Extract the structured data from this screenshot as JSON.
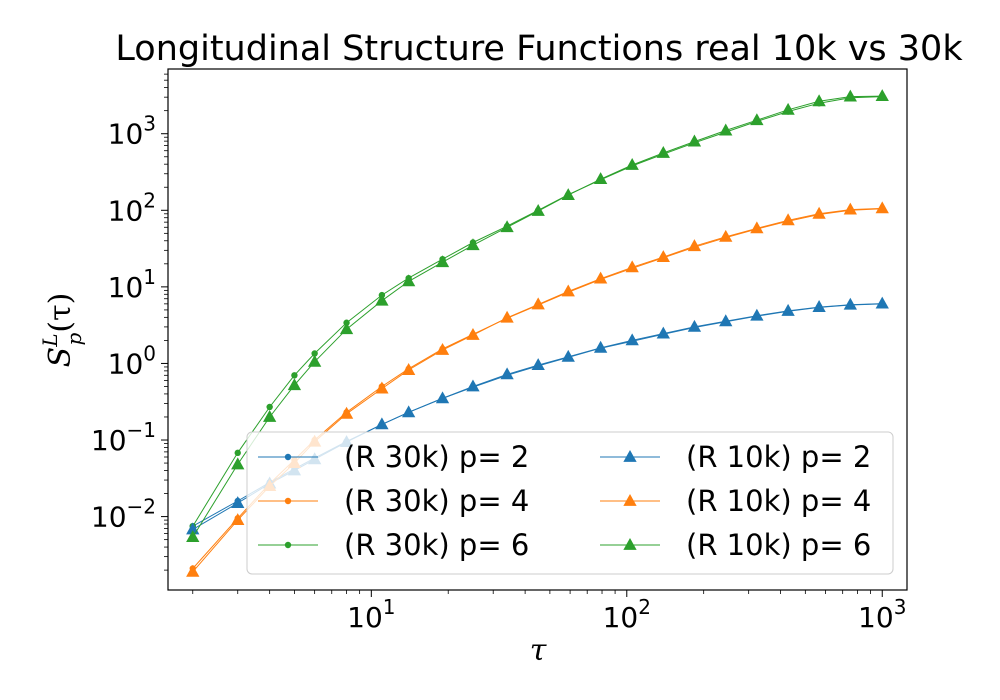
{
  "chart_data": {
    "type": "line",
    "title": "Longitudinal Structure Functions real 10k vs 30k",
    "xlabel": "τ",
    "ylabel_parts": {
      "base": "S",
      "superscript": "L",
      "subscript": "p",
      "arg": "(τ)"
    },
    "xscale": "log",
    "yscale": "log",
    "xlim": [
      1.6,
      1250
    ],
    "ylim": [
      0.0011,
      7000
    ],
    "grid": false,
    "legend": {
      "position": "lower-right",
      "columns": 2
    },
    "x_ticks": [
      {
        "value": 10,
        "base": "10",
        "exp": "1"
      },
      {
        "value": 100,
        "base": "10",
        "exp": "2"
      },
      {
        "value": 1000,
        "base": "10",
        "exp": "3"
      }
    ],
    "y_ticks": [
      {
        "value": 0.01,
        "base": "10",
        "exp": "−2"
      },
      {
        "value": 0.1,
        "base": "10",
        "exp": "−1"
      },
      {
        "value": 1,
        "base": "10",
        "exp": "0"
      },
      {
        "value": 10,
        "base": "10",
        "exp": "1"
      },
      {
        "value": 100,
        "base": "10",
        "exp": "2"
      },
      {
        "value": 1000,
        "base": "10",
        "exp": "3"
      }
    ],
    "x": [
      2,
      3,
      4,
      5,
      6,
      8,
      11,
      14,
      19,
      25,
      34,
      45,
      59,
      79,
      105,
      139,
      184,
      244,
      323,
      428,
      566,
      750,
      1000
    ],
    "series": [
      {
        "name": "(R 30k) p= 2",
        "color": "#1f77b4",
        "marker": "circle",
        "values": [
          0.0075,
          0.016,
          0.028,
          0.042,
          0.058,
          0.096,
          0.16,
          0.23,
          0.35,
          0.49,
          0.7,
          0.93,
          1.2,
          1.58,
          1.95,
          2.4,
          2.95,
          3.5,
          4.15,
          4.8,
          5.4,
          5.8,
          6.0
        ]
      },
      {
        "name": "(R 30k) p= 4",
        "color": "#ff7f0e",
        "marker": "circle",
        "values": [
          0.0021,
          0.0095,
          0.027,
          0.055,
          0.1,
          0.23,
          0.5,
          0.85,
          1.55,
          2.4,
          3.9,
          5.8,
          8.5,
          12.5,
          17.5,
          24.0,
          33.0,
          44.0,
          57.0,
          72.0,
          88.0,
          100,
          105
        ]
      },
      {
        "name": "(R 30k) p= 6",
        "color": "#2ca02c",
        "marker": "circle",
        "values": [
          0.0075,
          0.068,
          0.27,
          0.7,
          1.35,
          3.4,
          7.8,
          13.0,
          23.0,
          38.0,
          62.0,
          100,
          160,
          250,
          380,
          540,
          760,
          1050,
          1450,
          1950,
          2500,
          2950,
          3050
        ]
      },
      {
        "name": "(R 10k) p= 2",
        "color": "#1f77b4",
        "marker": "triangle",
        "values": [
          0.0068,
          0.015,
          0.027,
          0.04,
          0.056,
          0.094,
          0.16,
          0.23,
          0.35,
          0.5,
          0.72,
          0.95,
          1.22,
          1.6,
          2.0,
          2.45,
          3.0,
          3.55,
          4.2,
          4.85,
          5.45,
          5.85,
          6.05
        ]
      },
      {
        "name": "(R 10k) p= 4",
        "color": "#ff7f0e",
        "marker": "triangle",
        "values": [
          0.0019,
          0.009,
          0.025,
          0.05,
          0.095,
          0.22,
          0.47,
          0.82,
          1.5,
          2.35,
          3.95,
          5.9,
          8.7,
          12.8,
          18.0,
          24.5,
          34.0,
          45.0,
          58.0,
          74.0,
          90.0,
          102,
          106
        ]
      },
      {
        "name": "(R 10k) p= 6",
        "color": "#2ca02c",
        "marker": "triangle",
        "values": [
          0.0054,
          0.048,
          0.2,
          0.52,
          1.05,
          2.8,
          6.6,
          11.8,
          21.0,
          35.0,
          60.0,
          98.0,
          158,
          255,
          390,
          560,
          790,
          1100,
          1500,
          2050,
          2650,
          3050,
          3100
        ]
      }
    ]
  }
}
